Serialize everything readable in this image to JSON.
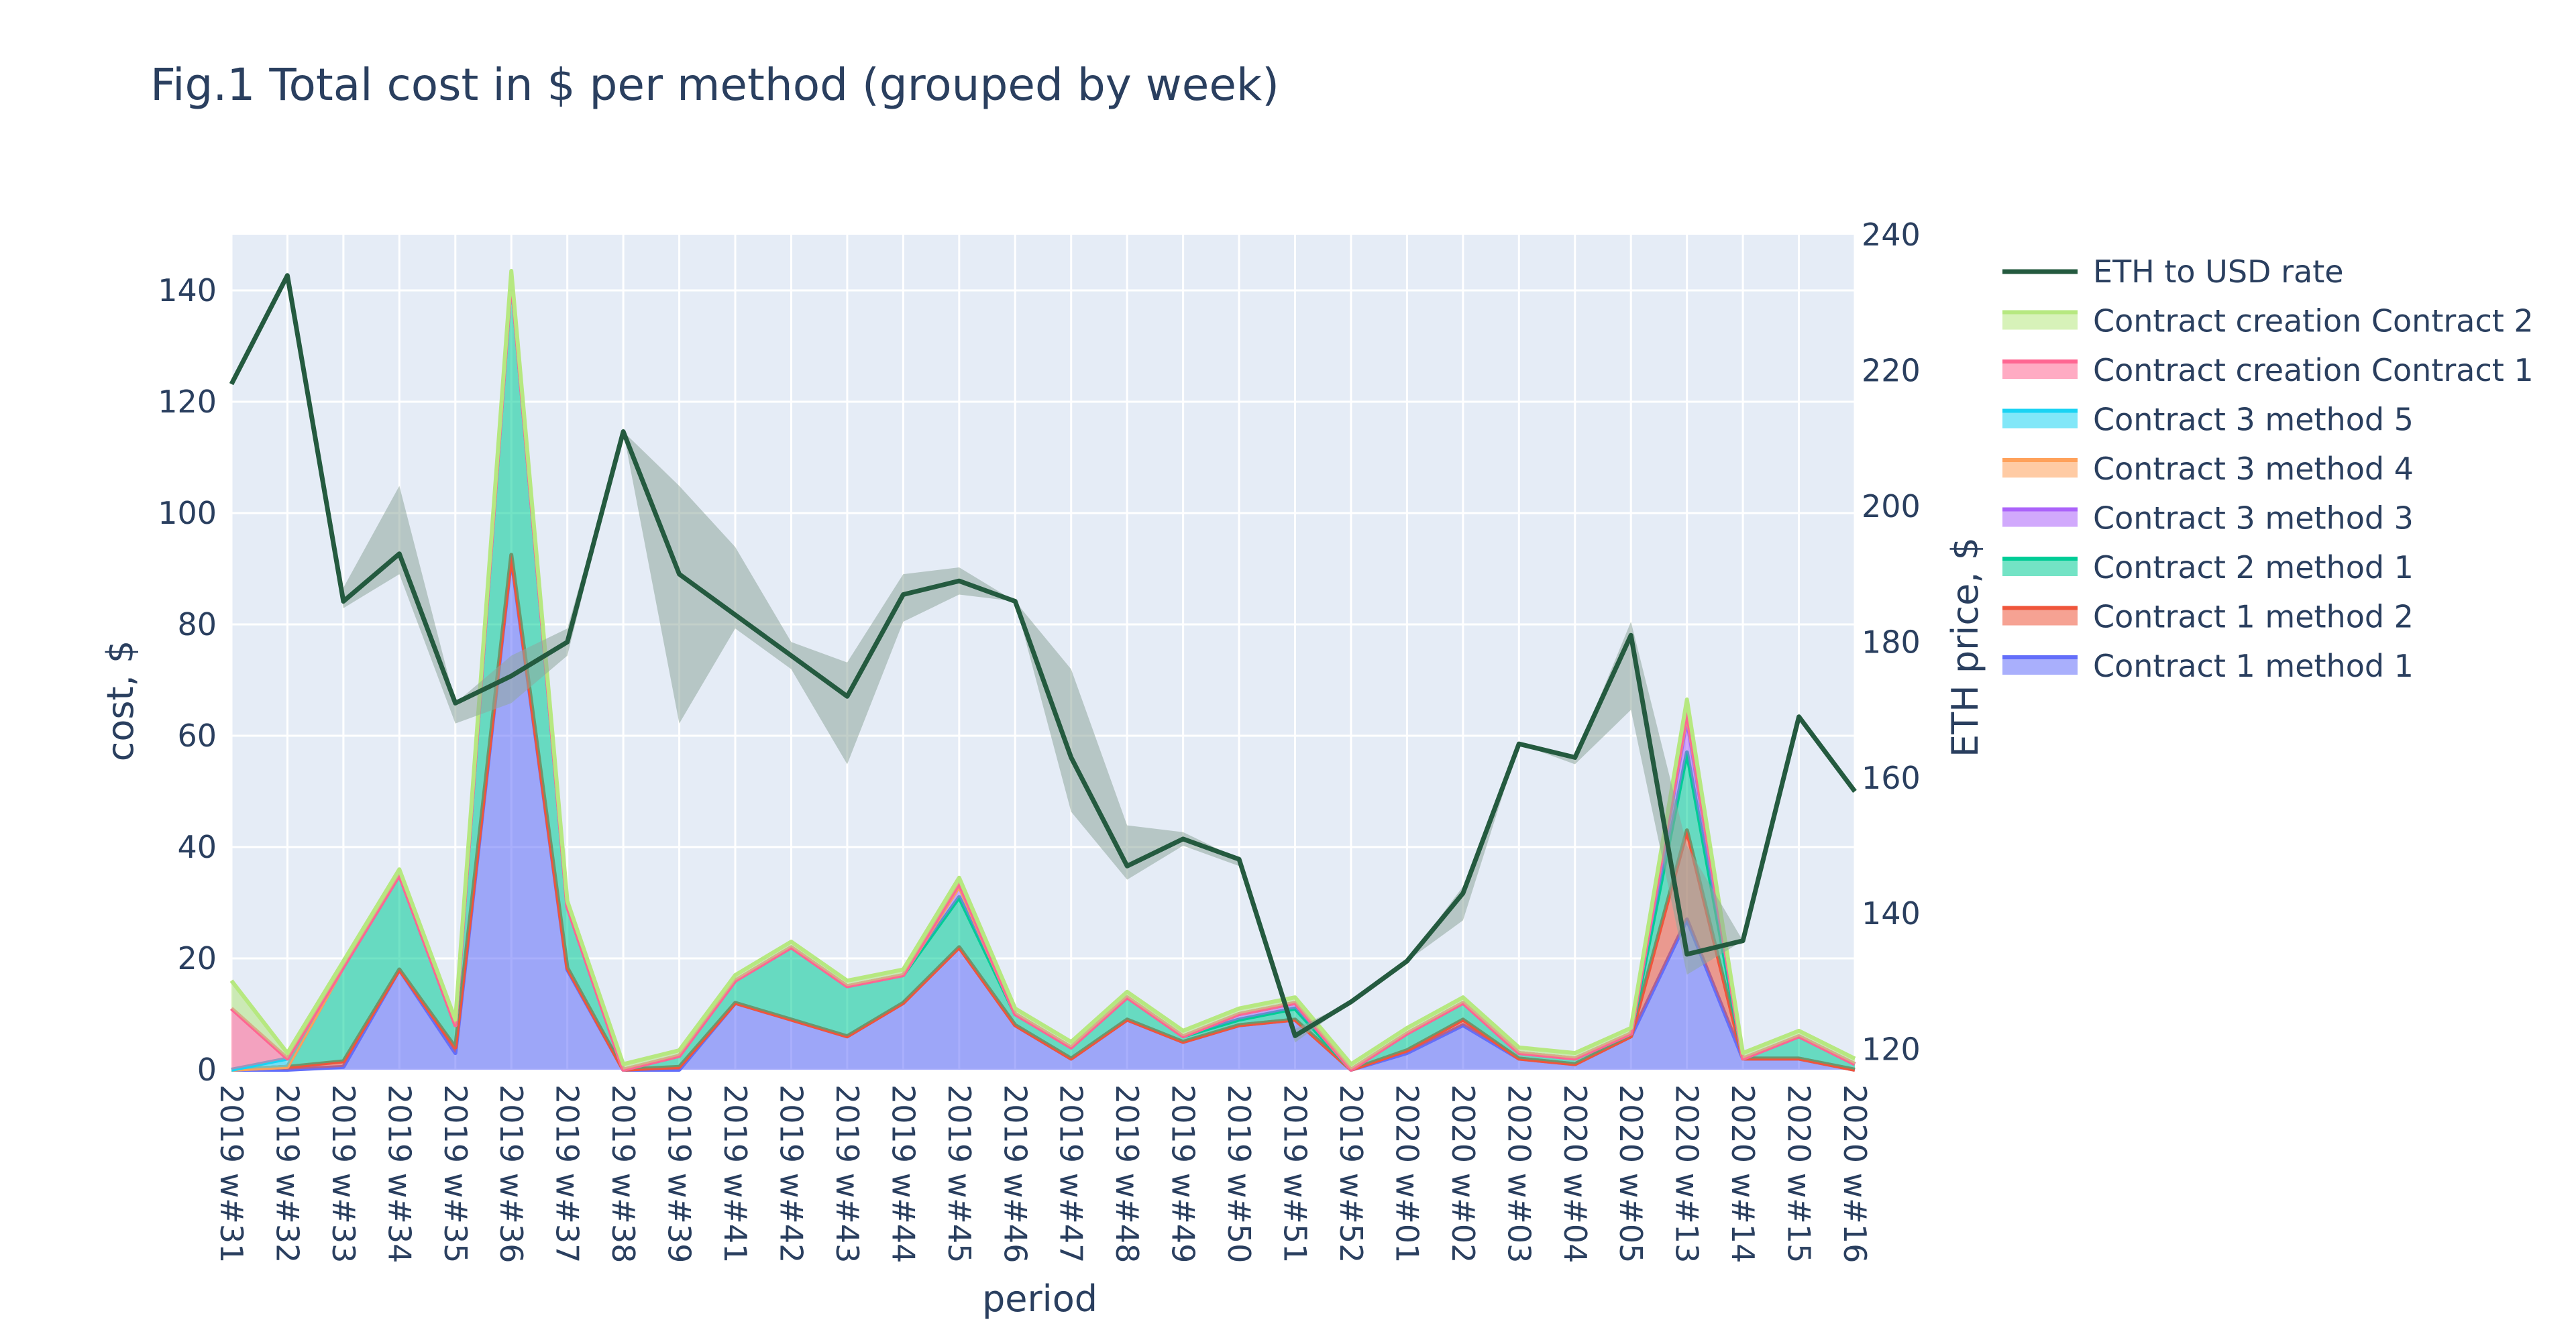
{
  "chart_data": {
    "type": "area",
    "title": "Fig.1 Total cost in $ per method (grouped by week)",
    "xlabel": "period",
    "ylabel": "cost, $",
    "y2label": "ETH price, $",
    "ylim": [
      0,
      150
    ],
    "y2lim": [
      117,
      240
    ],
    "yticks": [
      0,
      20,
      40,
      60,
      80,
      100,
      120,
      140
    ],
    "y2ticks": [
      120,
      140,
      160,
      180,
      200,
      220,
      240
    ],
    "grid": true,
    "legend_position": "right",
    "background_color": "#e5ecf6",
    "categories": [
      "2019 w#31",
      "2019 w#32",
      "2019 w#33",
      "2019 w#34",
      "2019 w#35",
      "2019 w#36",
      "2019 w#37",
      "2019 w#38",
      "2019 w#39",
      "2019 w#41",
      "2019 w#42",
      "2019 w#43",
      "2019 w#44",
      "2019 w#45",
      "2019 w#46",
      "2019 w#47",
      "2019 w#48",
      "2019 w#49",
      "2019 w#50",
      "2019 w#51",
      "2019 w#52",
      "2020 w#01",
      "2020 w#02",
      "2020 w#03",
      "2020 w#04",
      "2020 w#05",
      "2020 w#13",
      "2020 w#14",
      "2020 w#15",
      "2020 w#16"
    ],
    "series": [
      {
        "name": "Contract 1 method 1",
        "color": "#636efa",
        "values": [
          0,
          0,
          0.5,
          18,
          3,
          92,
          18,
          0,
          0,
          12,
          9,
          6,
          12,
          22,
          8,
          2,
          9,
          5,
          8,
          9,
          0,
          3,
          8,
          2,
          1,
          6,
          27,
          2,
          2,
          0
        ]
      },
      {
        "name": "Contract 1 method 2",
        "color": "#ef553b",
        "values": [
          0,
          0.5,
          1,
          0,
          1,
          0.5,
          0.3,
          0,
          0.5,
          0,
          0,
          0,
          0,
          0,
          0,
          0,
          0,
          0,
          0,
          0,
          0,
          0.5,
          1,
          0,
          0,
          0,
          16,
          0,
          0,
          0
        ]
      },
      {
        "name": "Contract 2 method 1",
        "color": "#00cc96",
        "values": [
          0,
          0,
          17,
          17,
          4,
          50,
          11,
          0,
          2,
          4,
          13,
          9,
          5,
          9,
          2,
          2,
          4,
          1,
          1,
          2,
          0,
          3,
          3,
          1,
          1,
          0.5,
          14,
          0,
          4,
          1
        ]
      },
      {
        "name": "Contract 3 method 3",
        "color": "#ab63fa",
        "values": [
          0,
          0,
          0,
          0,
          0,
          0,
          0,
          0,
          0,
          0,
          0,
          0,
          0,
          2,
          0,
          0,
          0,
          0,
          1,
          1,
          0,
          0,
          0,
          0,
          0,
          0,
          6,
          0,
          0,
          0
        ]
      },
      {
        "name": "Contract 3 method 4",
        "color": "#ffa15a",
        "values": [
          0,
          0,
          0,
          0,
          0,
          0,
          0,
          0,
          0,
          0,
          0,
          0,
          0,
          0,
          0,
          0,
          0,
          0,
          0,
          0,
          0,
          0,
          0,
          0,
          0,
          0,
          1,
          0,
          0,
          0
        ]
      },
      {
        "name": "Contract 3 method 5",
        "color": "#19d3f3",
        "values": [
          0,
          1.5,
          0,
          0,
          0,
          0,
          0,
          0,
          0,
          0,
          0,
          0,
          0,
          0.5,
          0,
          0,
          0,
          0,
          0,
          0,
          0,
          0,
          0,
          0,
          0,
          0,
          0.5,
          0,
          0,
          0
        ]
      },
      {
        "name": "Contract creation Contract 1",
        "color": "#ff6692",
        "values": [
          11,
          0,
          0,
          0,
          0,
          0,
          0,
          0,
          0,
          0,
          0,
          0,
          0,
          0,
          0,
          0,
          0,
          0,
          0,
          0,
          0,
          0,
          0,
          0,
          0,
          0,
          0,
          0,
          0,
          0
        ]
      },
      {
        "name": "Contract creation Contract 2",
        "color": "#b6e880",
        "values": [
          5,
          1,
          1,
          1,
          1,
          1,
          1,
          1,
          1,
          1,
          1,
          1,
          1,
          1,
          1,
          1,
          1,
          1,
          1,
          1,
          1,
          1,
          1,
          1,
          1,
          1,
          2,
          1,
          1,
          1
        ]
      }
    ],
    "eth_rate": {
      "name": "ETH to USD rate",
      "color": "#245a3f",
      "band_color": "#8fa89d",
      "values": [
        218,
        234,
        186,
        193,
        171,
        175,
        180,
        211,
        190,
        184,
        178,
        172,
        187,
        189,
        186,
        163,
        147,
        151,
        148,
        122,
        127,
        133,
        143,
        165,
        163,
        181,
        134,
        136,
        169,
        158
      ],
      "band_upper": [
        218,
        234,
        188,
        203,
        171,
        178,
        182,
        211,
        203,
        194,
        180,
        177,
        190,
        191,
        186,
        176,
        153,
        152,
        148,
        123,
        127,
        133,
        144,
        165,
        163,
        183,
        150,
        136,
        169,
        158
      ],
      "band_lower": [
        218,
        234,
        185,
        190,
        168,
        171,
        178,
        211,
        168,
        182,
        176,
        162,
        183,
        187,
        186,
        155,
        145,
        150,
        147,
        121,
        127,
        133,
        139,
        165,
        162,
        170,
        131,
        136,
        169,
        158
      ]
    }
  }
}
